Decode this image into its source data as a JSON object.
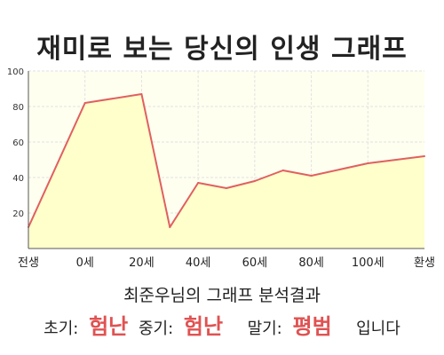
{
  "title": "재미로 보는 당신의 인생 그래프",
  "summary": {
    "heading": "최준우님의 그래프 분석결과",
    "items": [
      {
        "label": "초기:",
        "value": "험난"
      },
      {
        "label": "중기:",
        "value": "험난"
      },
      {
        "label": "말기:",
        "value": "평범"
      }
    ],
    "suffix": "입니다"
  },
  "colors": {
    "line": "#e06060",
    "fill": "#ffffcc",
    "plot_bg": "#fffff0",
    "grid": "#e2e2e2",
    "axis": "#555555",
    "accent": "#e05252"
  },
  "chart_data": {
    "type": "area",
    "title": "재미로 보는 당신의 인생 그래프",
    "xlabel": "",
    "ylabel": "",
    "ylim": [
      0,
      100
    ],
    "xlim": [
      0,
      14
    ],
    "yticks": [
      20,
      40,
      60,
      80,
      100
    ],
    "xticks": [
      {
        "pos": 0,
        "label": "전생"
      },
      {
        "pos": 2,
        "label": "0세"
      },
      {
        "pos": 4,
        "label": "20세"
      },
      {
        "pos": 6,
        "label": "40세"
      },
      {
        "pos": 8,
        "label": "60세"
      },
      {
        "pos": 10,
        "label": "80세"
      },
      {
        "pos": 12,
        "label": "100세"
      },
      {
        "pos": 14,
        "label": "환생"
      }
    ],
    "grid": true,
    "points": [
      {
        "x": 0,
        "y": 12
      },
      {
        "x": 2,
        "y": 82
      },
      {
        "x": 4,
        "y": 87
      },
      {
        "x": 5,
        "y": 12
      },
      {
        "x": 6,
        "y": 37
      },
      {
        "x": 7,
        "y": 34
      },
      {
        "x": 8,
        "y": 38
      },
      {
        "x": 9,
        "y": 44
      },
      {
        "x": 10,
        "y": 41
      },
      {
        "x": 12,
        "y": 48
      },
      {
        "x": 14,
        "y": 52
      }
    ]
  }
}
